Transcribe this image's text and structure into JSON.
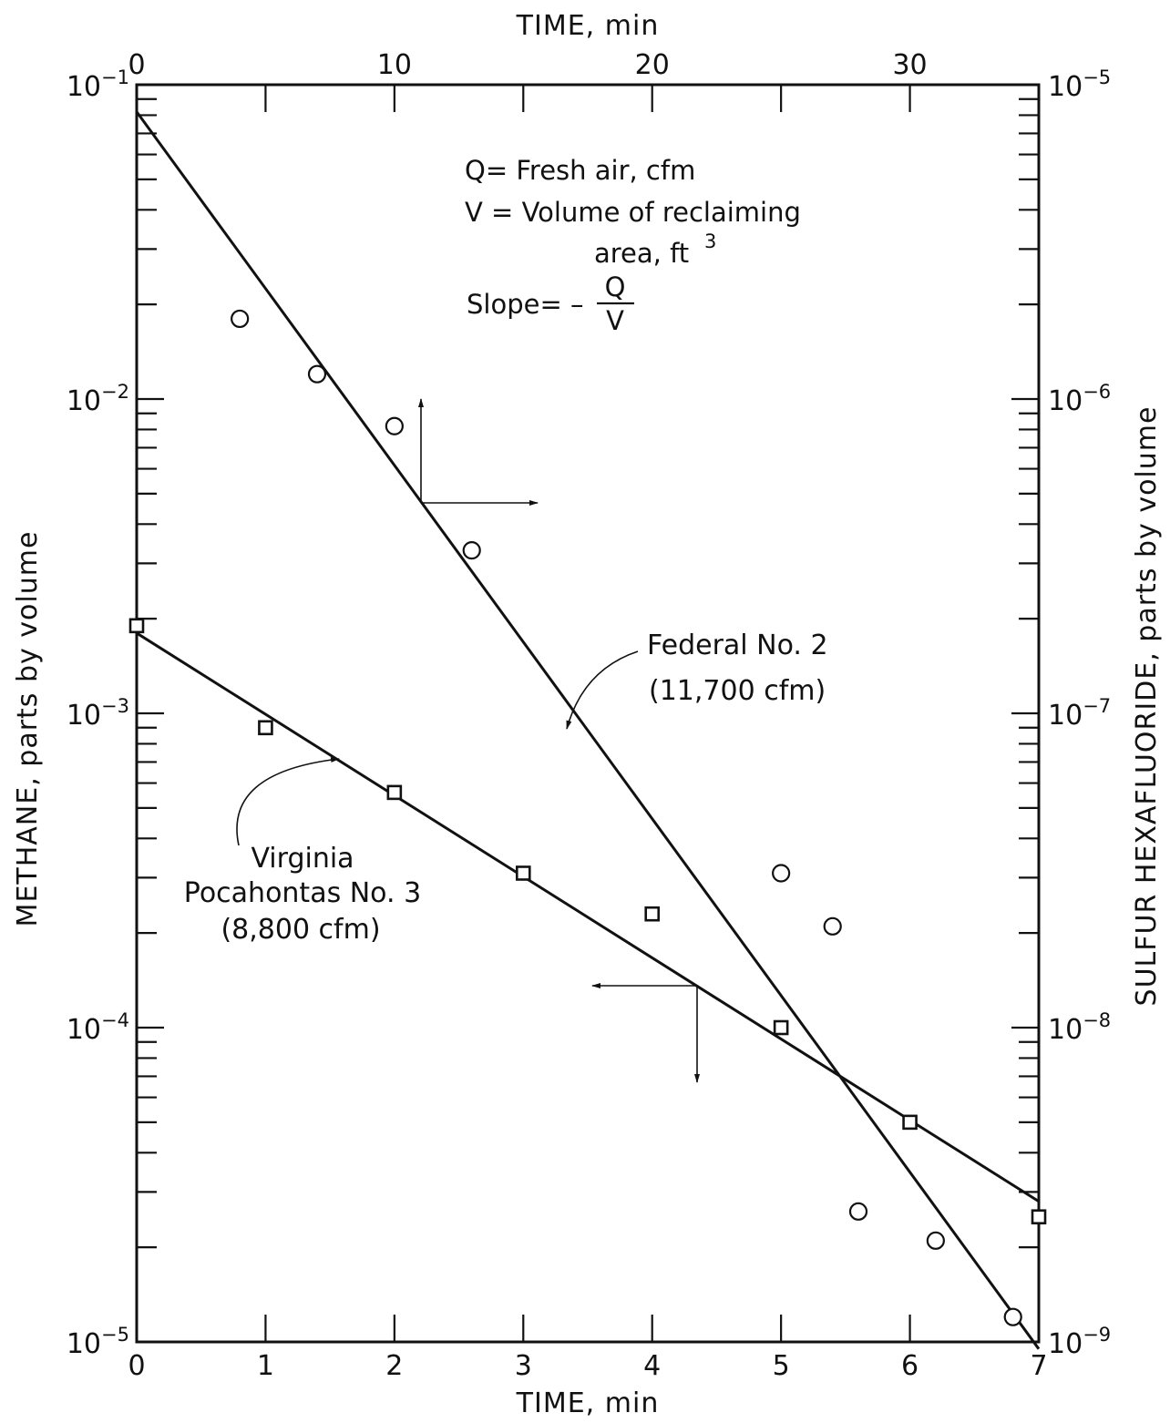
{
  "chart_data": {
    "type": "scatter",
    "x_bottom": {
      "label": "TIME, min",
      "range": [
        0,
        7
      ],
      "ticks": [
        0,
        1,
        2,
        3,
        4,
        5,
        6,
        7
      ],
      "tick_labels": [
        "0",
        "1",
        "2",
        "3",
        "4",
        "5",
        "6",
        "7"
      ]
    },
    "x_top": {
      "label": "TIME, min",
      "range": [
        0,
        35
      ],
      "ticks": [
        0,
        10,
        20,
        30
      ],
      "tick_labels": [
        "0",
        "10",
        "20",
        "30"
      ]
    },
    "y_left": {
      "label": "METHANE, parts by volume",
      "scale": "log",
      "range": [
        1e-05,
        0.1
      ],
      "tick_exponents": [
        -5,
        -4,
        -3,
        -2,
        -1
      ]
    },
    "y_right": {
      "label": "SULFUR HEXAFLUORIDE, parts by volume",
      "scale": "log",
      "range": [
        1e-09,
        1e-05
      ],
      "tick_exponents": [
        -9,
        -8,
        -7,
        -6,
        -5
      ]
    },
    "series": [
      {
        "name": "Federal No. 2",
        "detail": "(11,700 cfm)",
        "axes": "top-right",
        "marker": "circle",
        "x": [
          4,
          7,
          10,
          13,
          25,
          27,
          28,
          31,
          34
        ],
        "y": [
          1.8e-06,
          1.2e-06,
          8.2e-07,
          3.3e-07,
          3.1e-08,
          2.1e-08,
          2.6e-09,
          2.1e-09,
          1.2e-09
        ],
        "fit": {
          "x": [
            0,
            35
          ],
          "y": [
            8.2e-06,
            9.5e-10
          ]
        }
      },
      {
        "name": "Virginia Pocahontas No. 3",
        "detail": "(8,800 cfm)",
        "axes": "bottom-left",
        "marker": "square",
        "x": [
          0,
          1,
          2,
          3,
          4,
          5,
          6,
          7
        ],
        "y": [
          0.0019,
          0.0009,
          0.00056,
          0.00031,
          0.00023,
          0.0001,
          5e-05,
          2.5e-05
        ],
        "fit": {
          "x": [
            0,
            7
          ],
          "y": [
            0.0018,
            2.8e-05
          ]
        }
      }
    ],
    "annotation_lines": [
      "Q= Fresh air,  cfm",
      "V = Volume of reclaiming",
      "area, ft",
      "Slope= –",
      "Q",
      "V"
    ],
    "annotation_superscript": "3",
    "grid": false
  }
}
